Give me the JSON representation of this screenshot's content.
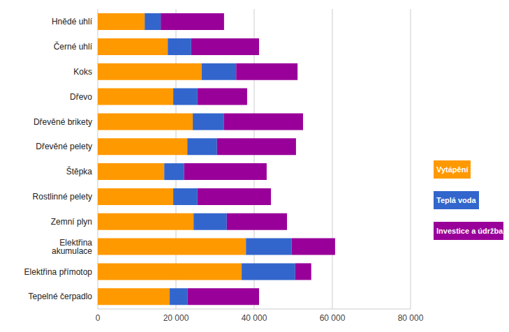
{
  "chart_data": {
    "type": "bar",
    "orientation": "horizontal",
    "stacked": true,
    "grid": true,
    "legend": "right",
    "categories": [
      "Hnědé uhlí",
      "Černé uhlí",
      "Koks",
      "Dřevo",
      "Dřevěné brikety",
      "Dřevěné pelety",
      "Štěpka",
      "Rostlinné pelety",
      "Zemní plyn",
      "Elektřina akumulace",
      "Elektřina přímotop",
      "Tepelné čerpadlo"
    ],
    "series": [
      {
        "name": "Vytápění",
        "color": "#ff9900",
        "values": [
          12000,
          17900,
          26600,
          19300,
          24300,
          22900,
          17000,
          19300,
          24500,
          37900,
          36800,
          18400
        ]
      },
      {
        "name": "Teplá voda",
        "color": "#3366cc",
        "values": [
          4100,
          6000,
          8800,
          6200,
          8000,
          7600,
          5100,
          6200,
          8500,
          11700,
          13700,
          4600
        ]
      },
      {
        "name": "Investice a údržba",
        "color": "#990099",
        "values": [
          16200,
          17350,
          15700,
          12700,
          20200,
          20200,
          21100,
          18800,
          15400,
          11100,
          4100,
          18250
        ]
      }
    ],
    "xlim": [
      0,
      80000
    ],
    "xticks": [
      0,
      {
        "value": 20000,
        "label": "20 000"
      },
      {
        "value": 40000,
        "label": "40 000"
      },
      {
        "value": 60000,
        "label": "60 000"
      },
      {
        "value": 80000,
        "label": "80 000"
      }
    ]
  }
}
